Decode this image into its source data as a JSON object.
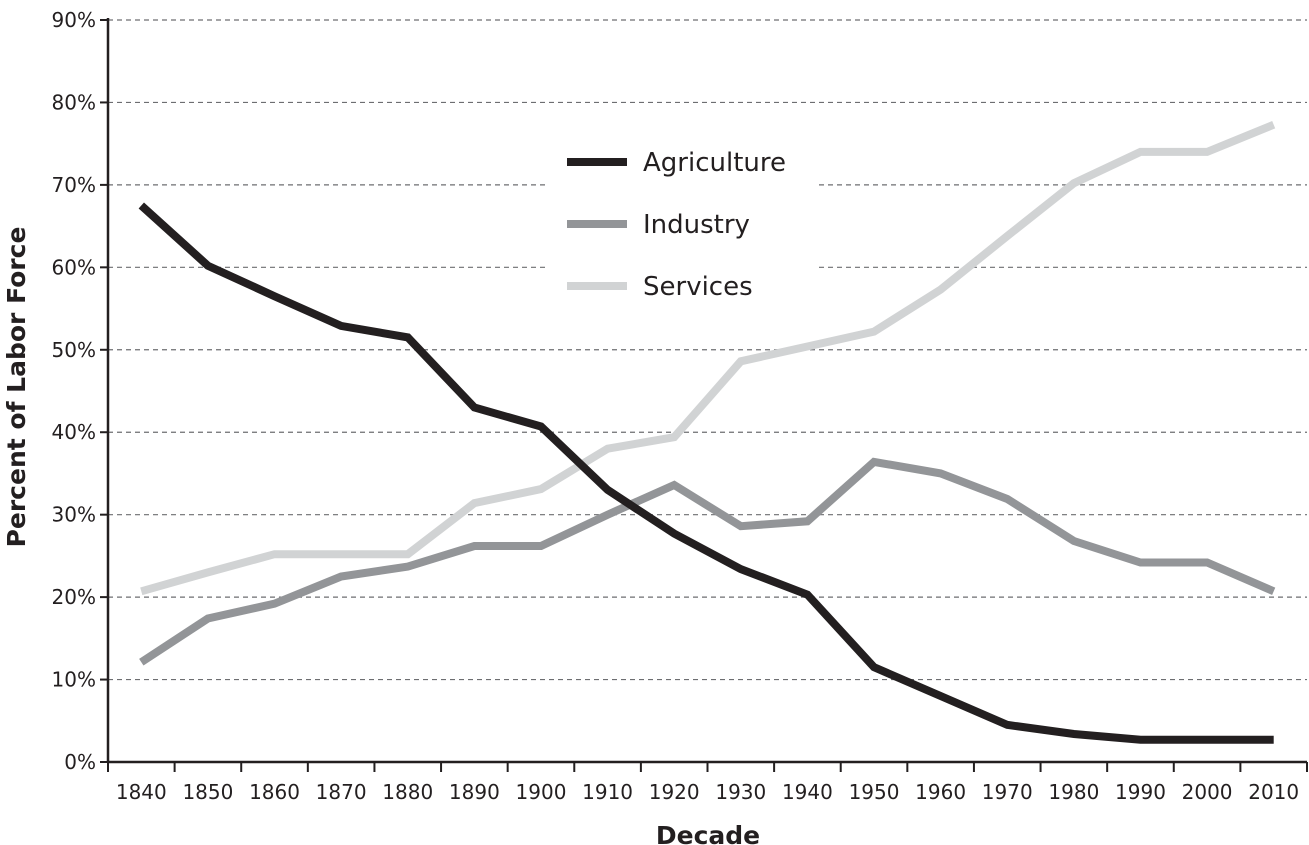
{
  "chart_data": {
    "type": "line",
    "title": "",
    "xlabel": "Decade",
    "ylabel": "Percent of Labor Force",
    "categories": [
      "1840",
      "1850",
      "1860",
      "1870",
      "1880",
      "1890",
      "1900",
      "1910",
      "1920",
      "1930",
      "1940",
      "1950",
      "1960",
      "1970",
      "1980",
      "1990",
      "2000",
      "2010"
    ],
    "y_ticks": [
      "0%",
      "10%",
      "20%",
      "30%",
      "40%",
      "50%",
      "60%",
      "70%",
      "80%",
      "90%"
    ],
    "ylim": [
      0,
      90
    ],
    "grid": true,
    "legend_position": "top-center",
    "series": [
      {
        "name": "Agriculture",
        "color": "#231f20",
        "values": [
          67.5,
          60.2,
          56.5,
          52.9,
          51.5,
          43.0,
          40.7,
          33.0,
          27.7,
          23.4,
          20.3,
          11.5,
          8.0,
          4.5,
          3.4,
          2.7,
          2.7,
          2.7
        ]
      },
      {
        "name": "Industry",
        "color": "#939598",
        "values": [
          12.1,
          17.4,
          19.2,
          22.5,
          23.7,
          26.2,
          26.2,
          30.0,
          33.6,
          28.6,
          29.2,
          36.4,
          35.0,
          31.9,
          26.8,
          24.2,
          24.2,
          20.7
        ]
      },
      {
        "name": "Services",
        "color": "#d1d3d4",
        "values": [
          20.7,
          23.0,
          25.2,
          25.2,
          25.2,
          31.4,
          33.1,
          38.0,
          39.4,
          48.6,
          50.4,
          52.2,
          57.3,
          63.8,
          70.2,
          74.0,
          74.0,
          77.3
        ]
      }
    ]
  }
}
